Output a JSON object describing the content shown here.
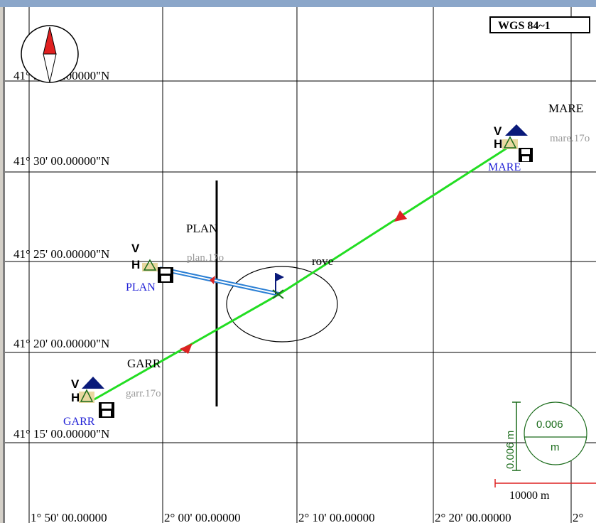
{
  "map": {
    "datum": "WGS 84~1",
    "lat_labels": [
      "41° 35' 00.00000\"N",
      "41° 30' 00.00000\"N",
      "41° 25' 00.00000\"N",
      "41° 20' 00.00000\"N",
      "41° 15' 00.00000\"N"
    ],
    "lon_labels": [
      "1° 50' 00.00000",
      "2° 00' 00.00000",
      "2° 10' 00.00000",
      "2° 20' 00.00000",
      "2°"
    ],
    "stations": {
      "mare": {
        "name": "MARE",
        "file": "mare.17o",
        "label": "MARE",
        "v": "V",
        "h": "H"
      },
      "plan": {
        "name": "PLAN",
        "file": "plan.17o",
        "label": "PLAN",
        "v": "V",
        "h": "H"
      },
      "garr": {
        "name": "GARR",
        "file": "garr.17o",
        "label": "GARR",
        "v": "V",
        "h": "H"
      }
    },
    "rover": {
      "name": "rove"
    },
    "precision": {
      "value": "0.006",
      "unit": "m",
      "vertical_label": "0.006 m"
    },
    "scale_bar": {
      "label": "10000 m"
    },
    "colors": {
      "baseline": "#22dd22",
      "plan_link": "#2a7fd4",
      "arrow": "#dd2222",
      "station_blue": "#2121d6",
      "triangle": "#0a1a7a",
      "precision": "#1a6b1a"
    },
    "icons": [
      "compass-icon",
      "station-triangle-icon",
      "floppy-disk-icon",
      "rover-flag-icon"
    ]
  }
}
